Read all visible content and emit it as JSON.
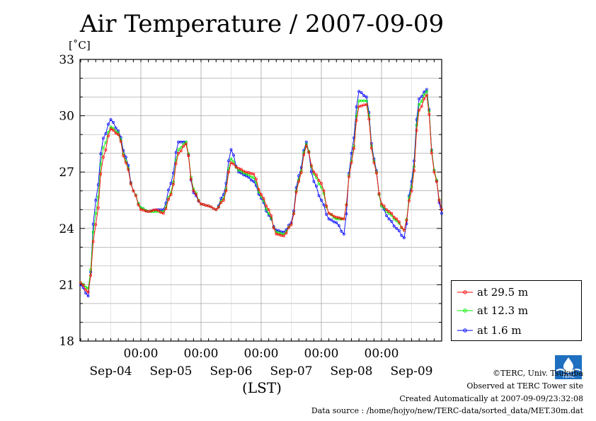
{
  "chart_data": {
    "type": "line",
    "title": "Air Temperature / 2007-09-09",
    "ylabel": "[˚C]",
    "xlabel": "(LST)",
    "ylim": [
      18,
      33
    ],
    "y_ticks": [
      "18",
      "21",
      "24",
      "27",
      "30",
      "33"
    ],
    "x_ticks_time": [
      "00:00",
      "00:00",
      "00:00",
      "00:00",
      "00:00"
    ],
    "x_ticks_date": [
      "Sep-04",
      "Sep-05",
      "Sep-06",
      "Sep-07",
      "Sep-08",
      "Sep-09"
    ],
    "x": [
      "Sep-03 21:00",
      "Sep-04 00:00",
      "Sep-04 03:00",
      "Sep-04 06:00",
      "Sep-04 09:00",
      "Sep-04 12:00",
      "Sep-04 15:00",
      "Sep-04 18:00",
      "Sep-04 21:00",
      "Sep-05 00:00",
      "Sep-05 03:00",
      "Sep-05 06:00",
      "Sep-05 09:00",
      "Sep-05 12:00",
      "Sep-05 15:00",
      "Sep-05 18:00",
      "Sep-05 21:00",
      "Sep-06 00:00",
      "Sep-06 03:00",
      "Sep-06 06:00",
      "Sep-06 09:00",
      "Sep-06 12:00",
      "Sep-06 15:00",
      "Sep-06 18:00",
      "Sep-06 21:00",
      "Sep-07 00:00",
      "Sep-07 03:00",
      "Sep-07 06:00",
      "Sep-07 09:00",
      "Sep-07 12:00",
      "Sep-07 15:00",
      "Sep-07 18:00",
      "Sep-07 21:00",
      "Sep-08 00:00",
      "Sep-08 03:00",
      "Sep-08 06:00",
      "Sep-08 09:00",
      "Sep-08 12:00",
      "Sep-08 15:00",
      "Sep-08 18:00",
      "Sep-08 21:00",
      "Sep-09 00:00",
      "Sep-09 03:00",
      "Sep-09 06:00",
      "Sep-09 09:00",
      "Sep-09 12:00",
      "Sep-09 15:00",
      "Sep-09 18:00",
      "Sep-09 21:00",
      "Sep-10 00:00"
    ],
    "series": [
      {
        "name": "at 29.5 m",
        "color": "#ff0000",
        "values": [
          22.0,
          21.1,
          20.6,
          24.2,
          27.8,
          29.3,
          29.0,
          27.5,
          26.0,
          25.0,
          24.9,
          25.0,
          24.8,
          25.8,
          28.0,
          28.5,
          26.0,
          25.3,
          25.2,
          25.0,
          25.5,
          27.5,
          27.2,
          27.0,
          26.9,
          25.8,
          25.0,
          23.7,
          23.6,
          24.2,
          26.5,
          28.4,
          27.0,
          26.4,
          24.8,
          24.6,
          24.5,
          27.5,
          30.5,
          30.6,
          27.5,
          25.3,
          24.9,
          24.5,
          23.9,
          26.0,
          30.3,
          31.1,
          27.0,
          25.0
        ]
      },
      {
        "name": "at 12.3 m",
        "color": "#00ee00",
        "values": [
          21.6,
          21.1,
          20.8,
          24.8,
          28.3,
          29.4,
          29.1,
          27.6,
          26.0,
          25.1,
          24.9,
          24.9,
          24.9,
          25.9,
          28.2,
          28.6,
          26.1,
          25.3,
          25.2,
          25.0,
          25.6,
          27.7,
          27.1,
          26.9,
          26.7,
          25.7,
          24.8,
          23.8,
          23.7,
          24.2,
          26.6,
          28.5,
          26.9,
          26.2,
          24.8,
          24.5,
          24.5,
          27.6,
          30.8,
          30.8,
          27.6,
          25.2,
          24.8,
          24.4,
          23.9,
          26.2,
          30.6,
          31.3,
          27.1,
          25.0
        ]
      },
      {
        "name": "at 1.6 m",
        "color": "#0000ff",
        "values": [
          21.0,
          21.0,
          20.4,
          25.5,
          28.8,
          29.8,
          29.2,
          27.8,
          26.0,
          25.1,
          24.9,
          25.0,
          25.0,
          26.4,
          28.6,
          28.6,
          25.9,
          25.3,
          25.2,
          25.0,
          25.8,
          28.2,
          27.0,
          26.8,
          26.5,
          25.6,
          24.7,
          23.9,
          23.8,
          24.3,
          26.8,
          28.6,
          26.5,
          25.5,
          24.5,
          24.3,
          23.7,
          28.0,
          31.3,
          31.0,
          27.7,
          25.2,
          24.5,
          24.0,
          23.5,
          26.5,
          30.9,
          31.4,
          27.1,
          24.8
        ]
      }
    ]
  },
  "legend": [
    {
      "label": "at 29.5 m",
      "color": "#ff0000"
    },
    {
      "label": "at 12.3 m",
      "color": "#00ee00"
    },
    {
      "label": "at 1.6 m",
      "color": "#0000ff"
    }
  ],
  "footer": {
    "copyright": "©TERC, Univ. Tsukuba",
    "observed": "Observed at TERC Tower site",
    "created": "Created Automatically at 2007-09-09/23:32:08",
    "source": "Data source : /home/hojyo/new/TERC-data/sorted_data/MET.30m.dat"
  },
  "logo_text": "TERC"
}
